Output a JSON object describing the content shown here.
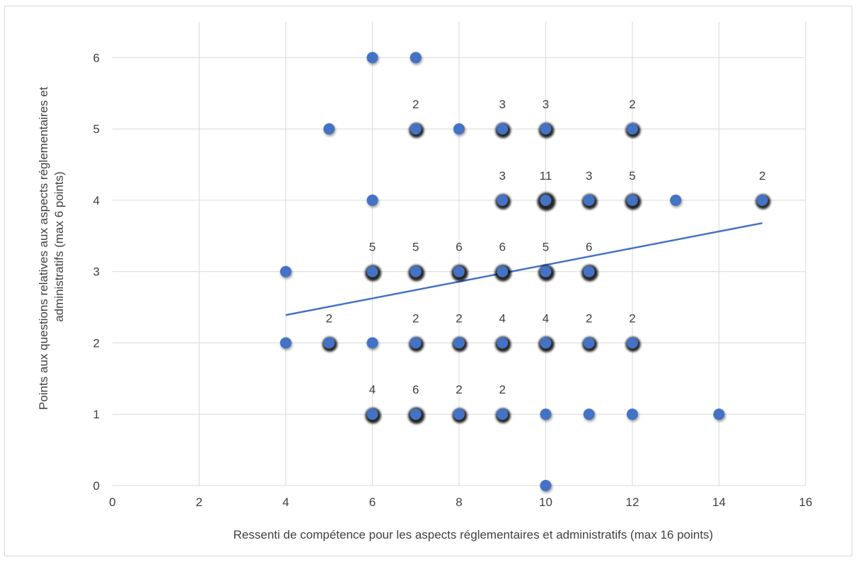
{
  "chart_data": {
    "type": "scatter",
    "title": "",
    "xlabel": "Ressenti de compétence pour les aspects réglementaires et administratifs (max 16 points)",
    "ylabel_lines": [
      "Points aux questions relatives aux aspects réglementaires et",
      "administratifs (max 6 points)"
    ],
    "xlim": [
      0,
      16
    ],
    "ylim": [
      0,
      6.5
    ],
    "x_ticks": [
      0,
      2,
      4,
      6,
      8,
      10,
      12,
      14,
      16
    ],
    "y_ticks": [
      0,
      1,
      2,
      3,
      4,
      5,
      6
    ],
    "grid": true,
    "legend": "none",
    "marker_color": "#4472C4",
    "trendline_color": "#4472C4",
    "points": [
      {
        "x": 6,
        "y": 6,
        "n": 1
      },
      {
        "x": 7,
        "y": 6,
        "n": 1
      },
      {
        "x": 5,
        "y": 5,
        "n": 1
      },
      {
        "x": 7,
        "y": 5,
        "n": 2
      },
      {
        "x": 8,
        "y": 5,
        "n": 1
      },
      {
        "x": 9,
        "y": 5,
        "n": 3
      },
      {
        "x": 10,
        "y": 5,
        "n": 3
      },
      {
        "x": 12,
        "y": 5,
        "n": 2
      },
      {
        "x": 6,
        "y": 4,
        "n": 1
      },
      {
        "x": 9,
        "y": 4,
        "n": 3
      },
      {
        "x": 10,
        "y": 4,
        "n": 11
      },
      {
        "x": 11,
        "y": 4,
        "n": 3
      },
      {
        "x": 12,
        "y": 4,
        "n": 5
      },
      {
        "x": 13,
        "y": 4,
        "n": 1
      },
      {
        "x": 15,
        "y": 4,
        "n": 2
      },
      {
        "x": 4,
        "y": 3,
        "n": 1
      },
      {
        "x": 6,
        "y": 3,
        "n": 5
      },
      {
        "x": 7,
        "y": 3,
        "n": 5
      },
      {
        "x": 8,
        "y": 3,
        "n": 6
      },
      {
        "x": 9,
        "y": 3,
        "n": 6
      },
      {
        "x": 10,
        "y": 3,
        "n": 5
      },
      {
        "x": 11,
        "y": 3,
        "n": 6
      },
      {
        "x": 4,
        "y": 2,
        "n": 1
      },
      {
        "x": 5,
        "y": 2,
        "n": 2
      },
      {
        "x": 6,
        "y": 2,
        "n": 1
      },
      {
        "x": 7,
        "y": 2,
        "n": 2
      },
      {
        "x": 8,
        "y": 2,
        "n": 2
      },
      {
        "x": 9,
        "y": 2,
        "n": 4
      },
      {
        "x": 10,
        "y": 2,
        "n": 4
      },
      {
        "x": 11,
        "y": 2,
        "n": 2
      },
      {
        "x": 12,
        "y": 2,
        "n": 2
      },
      {
        "x": 6,
        "y": 1,
        "n": 4
      },
      {
        "x": 7,
        "y": 1,
        "n": 6
      },
      {
        "x": 8,
        "y": 1,
        "n": 2
      },
      {
        "x": 9,
        "y": 1,
        "n": 2
      },
      {
        "x": 10,
        "y": 1,
        "n": 1
      },
      {
        "x": 11,
        "y": 1,
        "n": 1
      },
      {
        "x": 12,
        "y": 1,
        "n": 1
      },
      {
        "x": 14,
        "y": 1,
        "n": 1
      },
      {
        "x": 10,
        "y": 0,
        "n": 1
      }
    ],
    "trendline": {
      "type": "linear",
      "from": {
        "x": 4,
        "y": 2.39
      },
      "to": {
        "x": 15,
        "y": 3.68
      }
    }
  }
}
